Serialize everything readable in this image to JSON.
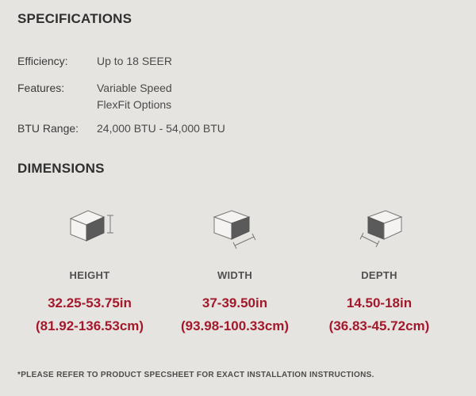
{
  "specifications": {
    "title": "SPECIFICATIONS",
    "rows": [
      {
        "label": "Efficiency:",
        "values": [
          "Up to 18 SEER"
        ]
      },
      {
        "label": "Features:",
        "values": [
          "Variable Speed",
          "FlexFit Options"
        ]
      },
      {
        "label": "BTU Range:",
        "values": [
          "24,000 BTU - 54,000 BTU"
        ]
      }
    ]
  },
  "dimensions": {
    "title": "DIMENSIONS",
    "items": [
      {
        "icon": "height-cube-icon",
        "label": "HEIGHT",
        "value": "32.25-53.75in",
        "metric": "(81.92-136.53cm)"
      },
      {
        "icon": "width-cube-icon",
        "label": "WIDTH",
        "value": "37-39.50in",
        "metric": "(93.98-100.33cm)"
      },
      {
        "icon": "depth-cube-icon",
        "label": "DEPTH",
        "value": "14.50-18in",
        "metric": "(36.83-45.72cm)"
      }
    ]
  },
  "footnote": "*PLEASE REFER TO PRODUCT SPECSHEET FOR EXACT INSTALLATION INSTRUCTIONS.",
  "colors": {
    "background": "#e6e4e1",
    "accent": "#a3192b",
    "text": "#3a3a3a"
  }
}
